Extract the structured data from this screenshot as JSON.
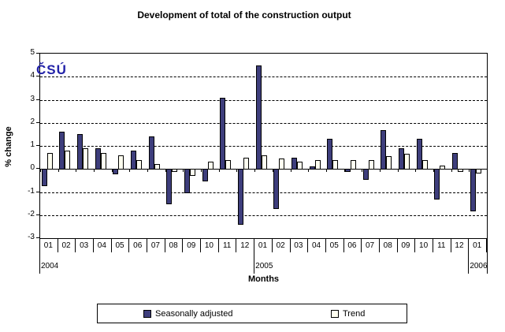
{
  "title": "Development of total of the construction output",
  "logo_text": "ČSÚ",
  "chart_data": {
    "type": "bar",
    "title": "Development of total of the construction output",
    "ylabel": "% change",
    "xlabel": "Months",
    "ylim": [
      -3,
      5
    ],
    "yticks": [
      5,
      4,
      3,
      2,
      1,
      0,
      -1,
      -2,
      -3
    ],
    "grid": "horizontal-dashed",
    "legend_position": "bottom",
    "categories": [
      "01",
      "02",
      "03",
      "04",
      "05",
      "06",
      "07",
      "08",
      "09",
      "10",
      "11",
      "12",
      "01",
      "02",
      "03",
      "04",
      "05",
      "06",
      "07",
      "08",
      "09",
      "10",
      "11",
      "12",
      "01"
    ],
    "year_groups": [
      {
        "label": "2004",
        "start_index": 0,
        "months": 12
      },
      {
        "label": "2005",
        "start_index": 12,
        "months": 12
      },
      {
        "label": "2006",
        "start_index": 24,
        "months": 1
      }
    ],
    "series": [
      {
        "name": "Seasonally adjusted",
        "color": "#3e3e7c",
        "values": [
          -0.7,
          1.6,
          1.5,
          0.9,
          -0.2,
          0.8,
          1.4,
          -1.5,
          -1.0,
          -0.5,
          3.1,
          -2.4,
          4.5,
          -1.7,
          0.5,
          0.1,
          1.3,
          -0.1,
          -0.45,
          1.7,
          0.9,
          1.3,
          -1.3,
          0.7,
          -1.8
        ]
      },
      {
        "name": "Trend",
        "color": "#fffff0",
        "values": [
          0.7,
          0.8,
          0.9,
          0.7,
          0.6,
          0.4,
          0.2,
          -0.1,
          -0.25,
          0.3,
          0.4,
          0.5,
          0.6,
          0.45,
          0.3,
          0.4,
          0.4,
          0.4,
          0.4,
          0.55,
          0.65,
          0.4,
          0.15,
          -0.1,
          -0.15
        ]
      }
    ]
  }
}
